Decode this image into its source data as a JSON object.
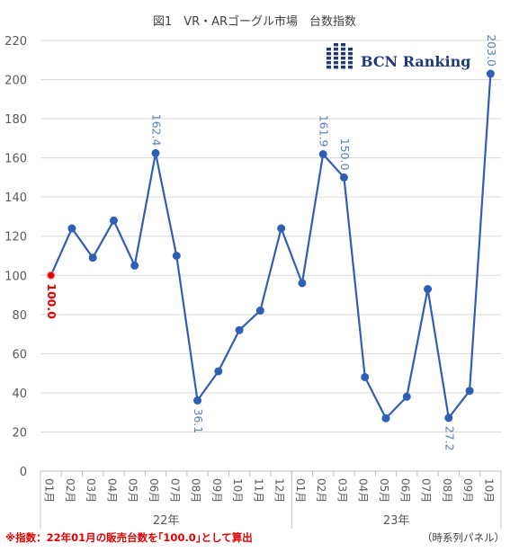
{
  "chart_data": {
    "type": "line",
    "title": "図1　VR・ARゴーグル市場　台数指数",
    "categories": [
      "01月",
      "02月",
      "03月",
      "04月",
      "05月",
      "06月",
      "07月",
      "08月",
      "09月",
      "10月",
      "11月",
      "12月",
      "01月",
      "02月",
      "03月",
      "04月",
      "05月",
      "06月",
      "07月",
      "08月",
      "09月",
      "10月"
    ],
    "year_groups": [
      {
        "label": "22年",
        "months": 12
      },
      {
        "label": "23年",
        "months": 10
      }
    ],
    "series": [
      {
        "values": [
          100.0,
          124,
          109,
          128,
          105,
          162.4,
          110,
          36.1,
          51,
          72,
          82,
          124,
          96,
          161.9,
          150.0,
          48,
          27,
          38,
          93,
          27.2,
          41,
          203.0
        ],
        "color": "#2e5fb5"
      }
    ],
    "ylim": [
      0,
      220
    ],
    "yticks": [
      0,
      20,
      40,
      60,
      80,
      100,
      120,
      140,
      160,
      180,
      200,
      220
    ],
    "ytick_labels": [
      "0",
      "20",
      "40",
      "60",
      "80",
      "100",
      "120",
      "140",
      "160",
      "180",
      "200",
      "220"
    ],
    "grid": "horizontal",
    "data_labels": [
      {
        "index": 0,
        "text": "100.0",
        "color": "#e00000",
        "placement": "below"
      },
      {
        "index": 5,
        "text": "162.4",
        "color": "#5b7fbf",
        "placement": "above"
      },
      {
        "index": 7,
        "text": "36.1",
        "color": "#5b7fbf",
        "placement": "below"
      },
      {
        "index": 13,
        "text": "161.9",
        "color": "#5b7fbf",
        "placement": "above"
      },
      {
        "index": 14,
        "text": "150.0",
        "color": "#5b7fbf",
        "placement": "above"
      },
      {
        "index": 19,
        "text": "27.2",
        "color": "#5b7fbf",
        "placement": "below"
      },
      {
        "index": 21,
        "text": "203.0",
        "color": "#5b7fbf",
        "placement": "above"
      }
    ],
    "highlight_point": {
      "index": 0,
      "color": "#e00000"
    }
  },
  "logo": {
    "text": "BCN Ranking",
    "color": "#1f3a7a",
    "icon": "building-icon"
  },
  "footnote": "※指数：22年01月の販売台数を｢100.0｣として算出",
  "source": "（時系列パネル）"
}
